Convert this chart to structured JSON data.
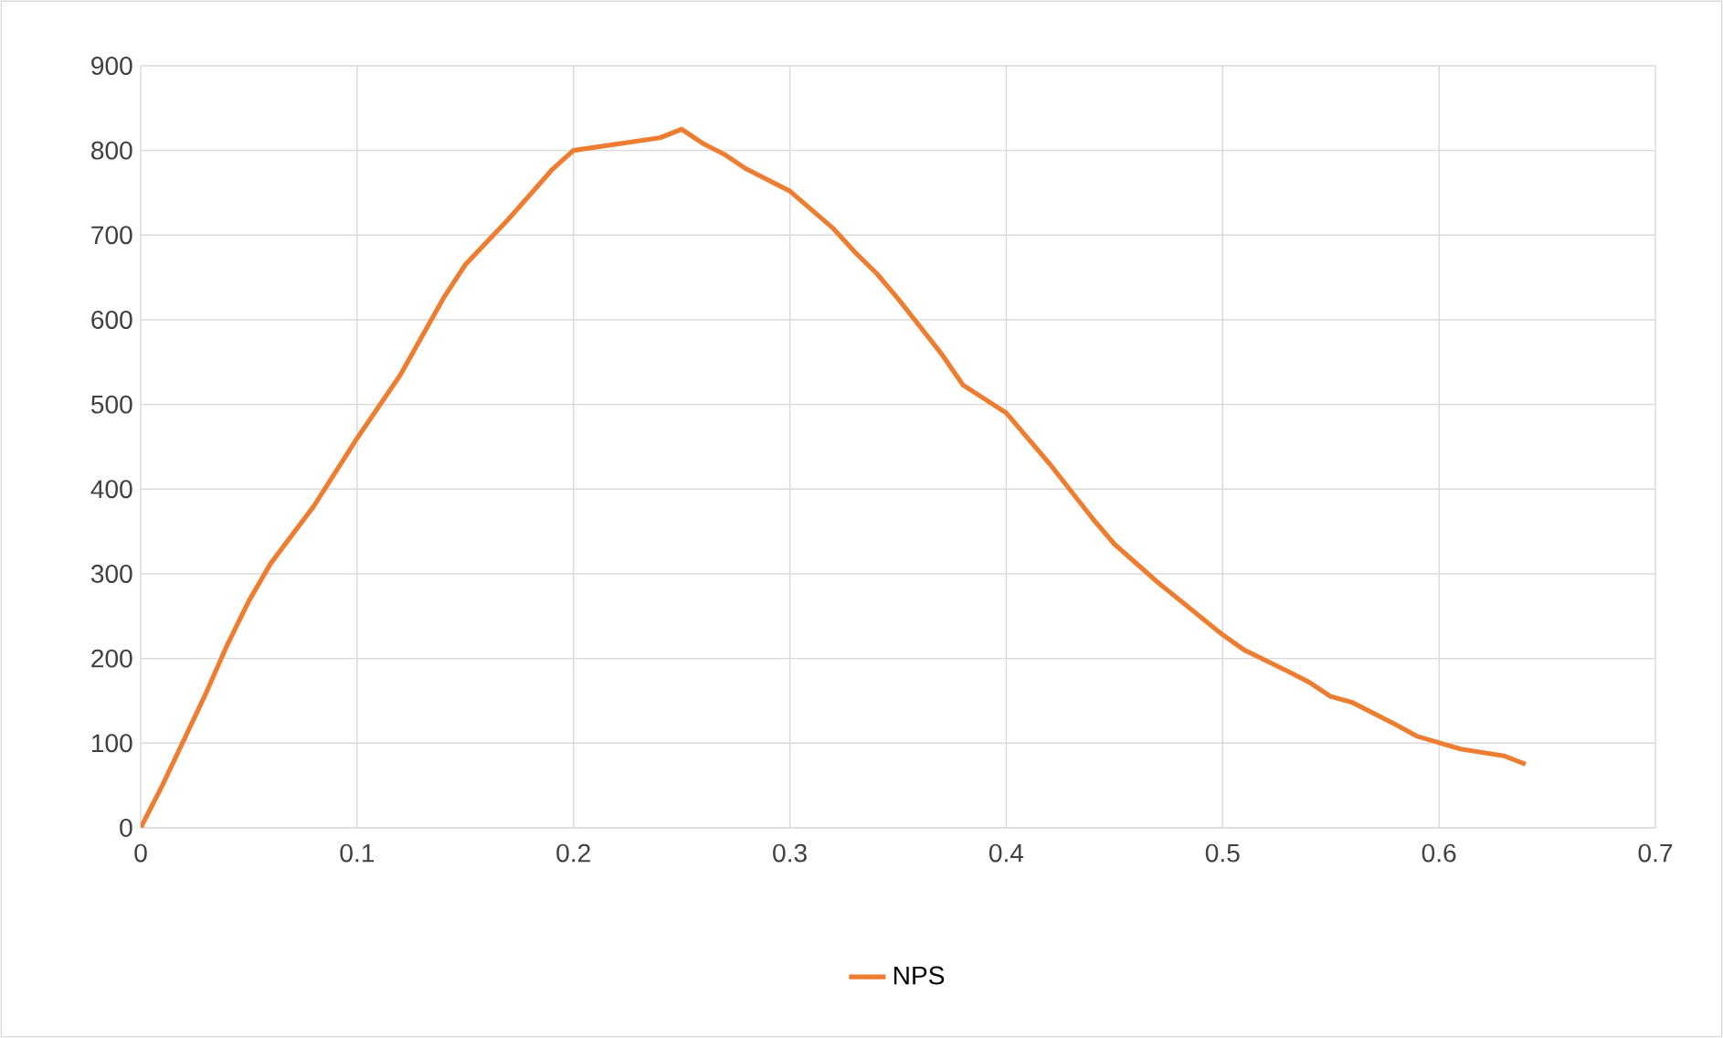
{
  "chart_data": {
    "type": "line",
    "x": [
      0,
      0.01,
      0.02,
      0.03,
      0.04,
      0.05,
      0.06,
      0.08,
      0.1,
      0.12,
      0.14,
      0.15,
      0.17,
      0.19,
      0.2,
      0.24,
      0.25,
      0.26,
      0.27,
      0.28,
      0.3,
      0.32,
      0.33,
      0.34,
      0.35,
      0.37,
      0.38,
      0.4,
      0.42,
      0.44,
      0.45,
      0.47,
      0.5,
      0.51,
      0.53,
      0.54,
      0.55,
      0.56,
      0.58,
      0.59,
      0.61,
      0.63,
      0.64
    ],
    "series": [
      {
        "name": "NPS",
        "color": "#ed7d31",
        "values": [
          0,
          50,
          104,
          158,
          216,
          268,
          312,
          380,
          460,
          535,
          626,
          665,
          719,
          777,
          800,
          815,
          825,
          808,
          795,
          778,
          752,
          708,
          680,
          655,
          625,
          560,
          523,
          490,
          430,
          365,
          335,
          290,
          228,
          210,
          185,
          172,
          155,
          148,
          122,
          108,
          93,
          85,
          75
        ]
      }
    ],
    "xlim": [
      0,
      0.7
    ],
    "xticks": [
      0,
      0.1,
      0.2,
      0.3,
      0.4,
      0.5,
      0.6,
      0.7
    ],
    "ylim": [
      0,
      900
    ],
    "yticks": [
      0,
      100,
      200,
      300,
      400,
      500,
      600,
      700,
      800,
      900
    ],
    "grid": true,
    "legend": "bottom",
    "line_style": "solid"
  }
}
